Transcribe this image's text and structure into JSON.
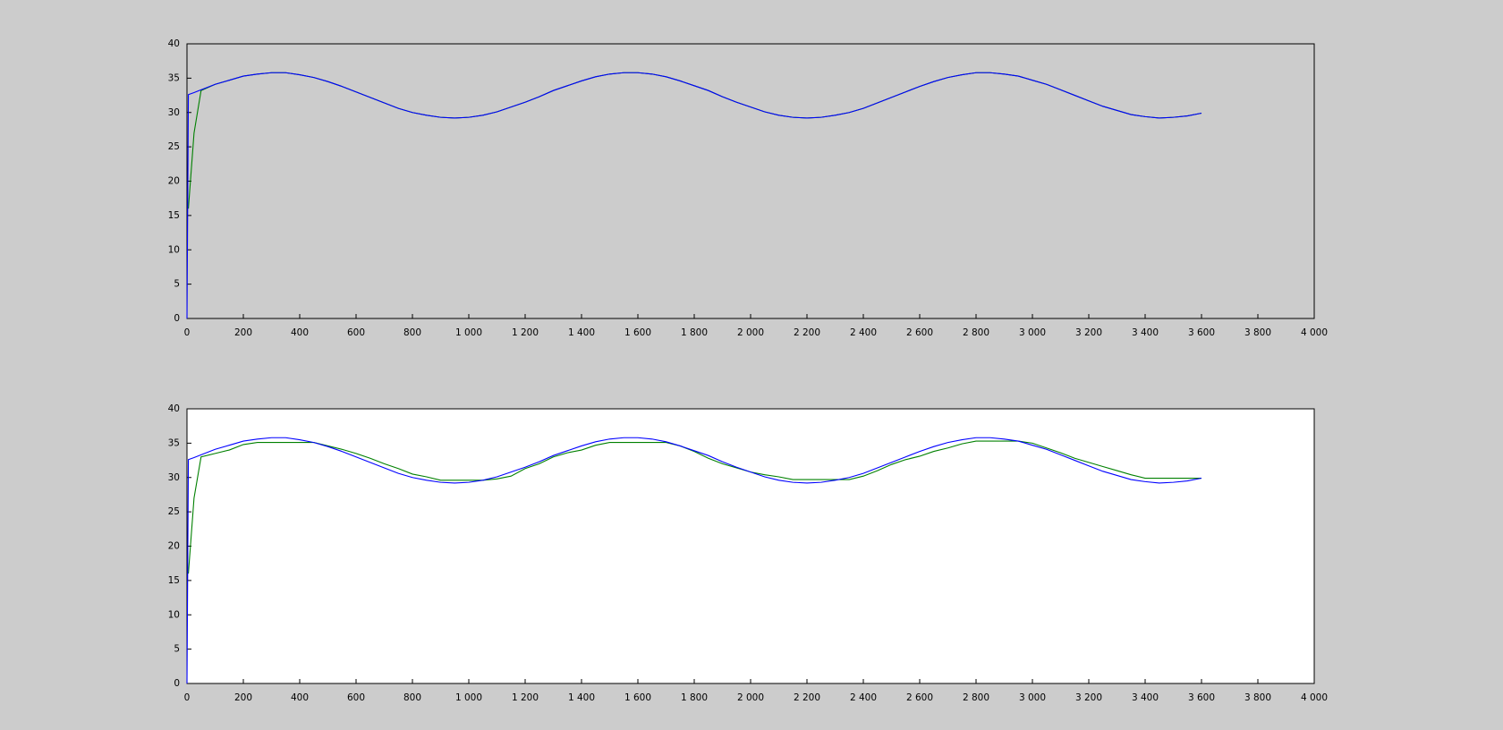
{
  "chart_data": [
    {
      "type": "line",
      "background": "#cccccc",
      "x": [
        0,
        5,
        25,
        50,
        100,
        150,
        200,
        250,
        300,
        350,
        400,
        450,
        500,
        550,
        600,
        650,
        700,
        750,
        800,
        850,
        900,
        950,
        1000,
        1050,
        1100,
        1150,
        1200,
        1250,
        1300,
        1350,
        1400,
        1450,
        1500,
        1550,
        1600,
        1650,
        1700,
        1750,
        1800,
        1850,
        1900,
        1950,
        2000,
        2050,
        2100,
        2150,
        2200,
        2250,
        2300,
        2350,
        2400,
        2450,
        2500,
        2550,
        2600,
        2650,
        2700,
        2750,
        2800,
        2850,
        2900,
        2950,
        3000,
        3050,
        3100,
        3150,
        3200,
        3250,
        3300,
        3350,
        3400,
        3450,
        3500,
        3550,
        3600
      ],
      "series": [
        {
          "color": "#008000",
          "values": [
            null,
            16,
            27,
            33.2,
            34.1,
            34.7,
            35.3,
            35.6,
            35.8,
            35.8,
            35.5,
            35.1,
            34.5,
            33.8,
            33.0,
            32.2,
            31.4,
            30.6,
            30.0,
            29.6,
            29.3,
            29.2,
            29.3,
            29.6,
            30.1,
            30.8,
            31.5,
            32.3,
            33.2,
            33.9,
            34.6,
            35.2,
            35.6,
            35.8,
            35.8,
            35.6,
            35.2,
            34.6,
            33.9,
            33.2,
            32.3,
            31.5,
            30.8,
            30.1,
            29.6,
            29.3,
            29.2,
            29.3,
            29.6,
            30.0,
            30.6,
            31.4,
            32.2,
            33.0,
            33.8,
            34.5,
            35.1,
            35.5,
            35.8,
            35.8,
            35.6,
            35.3,
            34.7,
            34.1,
            33.3,
            32.5,
            31.7,
            30.9,
            30.3,
            29.7,
            29.4,
            29.2,
            29.3,
            29.5,
            29.9
          ]
        },
        {
          "color": "#0000ff",
          "values": [
            0,
            32.6,
            32.9,
            33.3,
            34.1,
            34.7,
            35.3,
            35.6,
            35.8,
            35.8,
            35.5,
            35.1,
            34.5,
            33.8,
            33.0,
            32.2,
            31.4,
            30.6,
            30.0,
            29.6,
            29.3,
            29.2,
            29.3,
            29.6,
            30.1,
            30.8,
            31.5,
            32.3,
            33.2,
            33.9,
            34.6,
            35.2,
            35.6,
            35.8,
            35.8,
            35.6,
            35.2,
            34.6,
            33.9,
            33.2,
            32.3,
            31.5,
            30.8,
            30.1,
            29.6,
            29.3,
            29.2,
            29.3,
            29.6,
            30.0,
            30.6,
            31.4,
            32.2,
            33.0,
            33.8,
            34.5,
            35.1,
            35.5,
            35.8,
            35.8,
            35.6,
            35.3,
            34.7,
            34.1,
            33.3,
            32.5,
            31.7,
            30.9,
            30.3,
            29.7,
            29.4,
            29.2,
            29.3,
            29.5,
            29.9
          ]
        }
      ],
      "xlim": [
        0,
        4000
      ],
      "ylim": [
        0,
        40
      ],
      "xticks": [
        0,
        200,
        400,
        600,
        800,
        {
          "value": 1000,
          "label": "1 000"
        },
        {
          "value": 1200,
          "label": "1 200"
        },
        {
          "value": 1400,
          "label": "1 400"
        },
        {
          "value": 1600,
          "label": "1 600"
        },
        {
          "value": 1800,
          "label": "1 800"
        },
        {
          "value": 2000,
          "label": "2 000"
        },
        {
          "value": 2200,
          "label": "2 200"
        },
        {
          "value": 2400,
          "label": "2 400"
        },
        {
          "value": 2600,
          "label": "2 600"
        },
        {
          "value": 2800,
          "label": "2 800"
        },
        {
          "value": 3000,
          "label": "3 000"
        },
        {
          "value": 3200,
          "label": "3 200"
        },
        {
          "value": 3400,
          "label": "3 400"
        },
        {
          "value": 3600,
          "label": "3 600"
        },
        {
          "value": 3800,
          "label": "3 800"
        },
        {
          "value": 4000,
          "label": "4 000"
        }
      ],
      "yticks": [
        0,
        5,
        10,
        15,
        20,
        25,
        30,
        35,
        40
      ]
    },
    {
      "type": "line",
      "background": "#ffffff",
      "x": [
        0,
        5,
        25,
        50,
        100,
        150,
        200,
        250,
        300,
        350,
        400,
        450,
        500,
        550,
        600,
        650,
        700,
        750,
        800,
        850,
        900,
        950,
        1000,
        1050,
        1100,
        1150,
        1200,
        1250,
        1300,
        1350,
        1400,
        1450,
        1500,
        1550,
        1600,
        1650,
        1700,
        1750,
        1800,
        1850,
        1900,
        1950,
        2000,
        2050,
        2100,
        2150,
        2200,
        2250,
        2300,
        2350,
        2400,
        2450,
        2500,
        2550,
        2600,
        2650,
        2700,
        2750,
        2800,
        2850,
        2900,
        2950,
        3000,
        3050,
        3100,
        3150,
        3200,
        3250,
        3300,
        3350,
        3400,
        3450,
        3500,
        3550,
        3600
      ],
      "series": [
        {
          "color": "#008000",
          "values": [
            null,
            16,
            27,
            33.0,
            33.5,
            34.0,
            34.8,
            35.1,
            35.1,
            35.1,
            35.1,
            35.1,
            34.6,
            34.1,
            33.5,
            32.8,
            32.0,
            31.3,
            30.5,
            30.1,
            29.6,
            29.6,
            29.6,
            29.6,
            29.8,
            30.2,
            31.3,
            32.0,
            33.0,
            33.6,
            34.0,
            34.7,
            35.1,
            35.1,
            35.1,
            35.1,
            35.1,
            34.6,
            33.8,
            32.8,
            32.0,
            31.4,
            30.8,
            30.4,
            30.1,
            29.7,
            29.7,
            29.7,
            29.7,
            29.7,
            30.2,
            31.0,
            31.9,
            32.6,
            33.1,
            33.8,
            34.3,
            34.9,
            35.3,
            35.3,
            35.3,
            35.3,
            35.0,
            34.3,
            33.6,
            32.8,
            32.2,
            31.6,
            31.0,
            30.4,
            29.9,
            29.9,
            29.9,
            29.9,
            29.9
          ]
        },
        {
          "color": "#0000ff",
          "values": [
            0,
            32.6,
            32.9,
            33.3,
            34.1,
            34.7,
            35.3,
            35.6,
            35.8,
            35.8,
            35.5,
            35.1,
            34.5,
            33.8,
            33.0,
            32.2,
            31.4,
            30.6,
            30.0,
            29.6,
            29.3,
            29.2,
            29.3,
            29.6,
            30.1,
            30.8,
            31.5,
            32.3,
            33.2,
            33.9,
            34.6,
            35.2,
            35.6,
            35.8,
            35.8,
            35.6,
            35.2,
            34.6,
            33.9,
            33.2,
            32.3,
            31.5,
            30.8,
            30.1,
            29.6,
            29.3,
            29.2,
            29.3,
            29.6,
            30.0,
            30.6,
            31.4,
            32.2,
            33.0,
            33.8,
            34.5,
            35.1,
            35.5,
            35.8,
            35.8,
            35.6,
            35.3,
            34.7,
            34.1,
            33.3,
            32.5,
            31.7,
            30.9,
            30.3,
            29.7,
            29.4,
            29.2,
            29.3,
            29.5,
            29.9
          ]
        }
      ],
      "xlim": [
        0,
        4000
      ],
      "ylim": [
        0,
        40
      ],
      "xticks": [
        0,
        200,
        400,
        600,
        800,
        {
          "value": 1000,
          "label": "1 000"
        },
        {
          "value": 1200,
          "label": "1 200"
        },
        {
          "value": 1400,
          "label": "1 400"
        },
        {
          "value": 1600,
          "label": "1 600"
        },
        {
          "value": 1800,
          "label": "1 800"
        },
        {
          "value": 2000,
          "label": "2 000"
        },
        {
          "value": 2200,
          "label": "2 200"
        },
        {
          "value": 2400,
          "label": "2 400"
        },
        {
          "value": 2600,
          "label": "2 600"
        },
        {
          "value": 2800,
          "label": "2 800"
        },
        {
          "value": 3000,
          "label": "3 000"
        },
        {
          "value": 3200,
          "label": "3 200"
        },
        {
          "value": 3400,
          "label": "3 400"
        },
        {
          "value": 3600,
          "label": "3 600"
        },
        {
          "value": 3800,
          "label": "3 800"
        },
        {
          "value": 4000,
          "label": "4 000"
        }
      ],
      "yticks": [
        0,
        5,
        10,
        15,
        20,
        25,
        30,
        35,
        40
      ]
    }
  ]
}
